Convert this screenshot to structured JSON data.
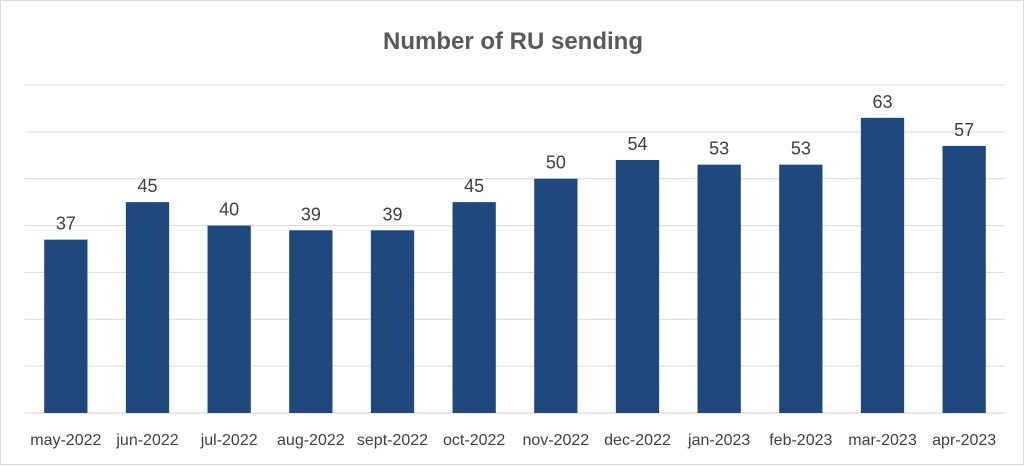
{
  "chart_data": {
    "type": "bar",
    "title": "Number of RU sending",
    "xlabel": "",
    "ylabel": "",
    "categories": [
      "may-2022",
      "jun-2022",
      "jul-2022",
      "aug-2022",
      "sept-2022",
      "oct-2022",
      "nov-2022",
      "dec-2022",
      "jan-2023",
      "feb-2023",
      "mar-2023",
      "apr-2023"
    ],
    "values": [
      37,
      45,
      40,
      39,
      39,
      45,
      50,
      54,
      53,
      53,
      63,
      57
    ],
    "ylim": [
      0,
      70
    ],
    "ytick_step": 10,
    "y_axis_labels_shown": false,
    "grid": true,
    "legend": "none",
    "data_labels": true,
    "bar_color": "#1f497d",
    "grid_color": "#d9d9d9",
    "title_color": "#595959",
    "text_color": "#404040"
  }
}
